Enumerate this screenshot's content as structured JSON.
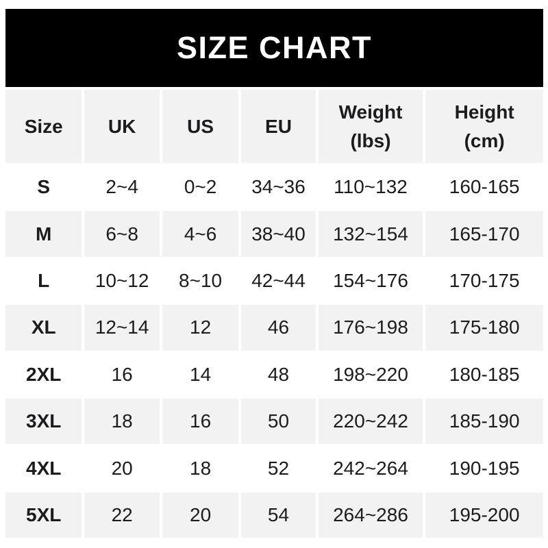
{
  "title": "SIZE CHART",
  "colors": {
    "banner_bg": "#000000",
    "banner_text": "#ffffff",
    "row_shade": "#f2f2f2",
    "text": "#1c1c1e",
    "background": "#ffffff"
  },
  "table": {
    "display_columns": [
      "Size",
      "UK",
      "US",
      "EU",
      "Weight\n(lbs)",
      "Height\n(cm)"
    ],
    "shaded_data_row_indices": [
      1,
      3,
      5,
      7
    ],
    "header_shaded": true
  },
  "chart_data": {
    "type": "table",
    "title": "SIZE CHART",
    "columns": [
      "Size",
      "UK",
      "US",
      "EU",
      "Weight (lbs)",
      "Height (cm)"
    ],
    "rows": [
      [
        "S",
        "2~4",
        "0~2",
        "34~36",
        "110~132",
        "160-165"
      ],
      [
        "M",
        "6~8",
        "4~6",
        "38~40",
        "132~154",
        "165-170"
      ],
      [
        "L",
        "10~12",
        "8~10",
        "42~44",
        "154~176",
        "170-175"
      ],
      [
        "XL",
        "12~14",
        "12",
        "46",
        "176~198",
        "175-180"
      ],
      [
        "2XL",
        "16",
        "14",
        "48",
        "198~220",
        "180-185"
      ],
      [
        "3XL",
        "18",
        "16",
        "50",
        "220~242",
        "185-190"
      ],
      [
        "4XL",
        "20",
        "18",
        "52",
        "242~264",
        "190-195"
      ],
      [
        "5XL",
        "22",
        "20",
        "54",
        "264~286",
        "195-200"
      ]
    ],
    "layout": {
      "legend": "none",
      "grid": "off",
      "banner_position": "top",
      "alternating_row_shading": true
    }
  }
}
